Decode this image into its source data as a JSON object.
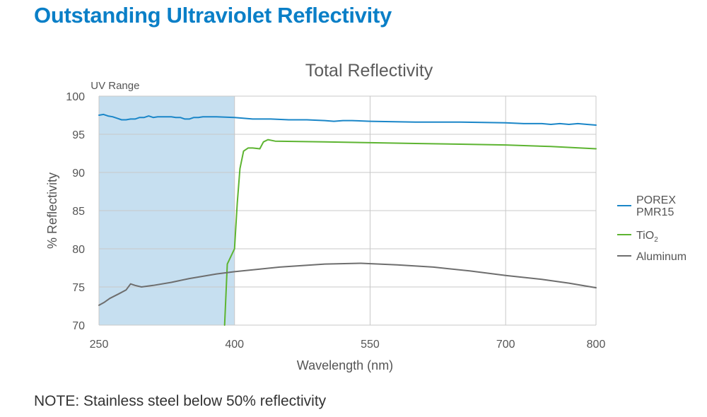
{
  "page": {
    "heading": "Outstanding Ultraviolet Reflectivity",
    "note": "NOTE: Stainless steel below 50% reflectivity"
  },
  "colors": {
    "heading": "#0a7fc7",
    "porex": "#1a86c8",
    "tio2": "#5db431",
    "aluminum": "#6e6e6e",
    "uv_band": "#c6dff0",
    "grid": "#c8c8c8"
  },
  "chart_data": {
    "type": "line",
    "title": "Total Reflectivity",
    "xlabel": "Wavelength (nm)",
    "ylabel": "% Reflectivity",
    "xlim": [
      250,
      800
    ],
    "ylim": [
      70,
      100
    ],
    "xticks": [
      250,
      400,
      550,
      700,
      800
    ],
    "yticks": [
      70,
      75,
      80,
      85,
      90,
      95,
      100
    ],
    "grid": true,
    "legend_position": "right",
    "annotations": [
      {
        "text": "UV Range",
        "x_start": 250,
        "x_end": 400
      }
    ],
    "series": [
      {
        "name": "POREX PMR15",
        "legend_lines": [
          "POREX",
          "PMR15"
        ],
        "color": "#1a86c8",
        "points": [
          [
            250,
            97.5
          ],
          [
            255,
            97.6
          ],
          [
            260,
            97.4
          ],
          [
            265,
            97.3
          ],
          [
            270,
            97.1
          ],
          [
            275,
            96.9
          ],
          [
            280,
            96.9
          ],
          [
            285,
            97.0
          ],
          [
            290,
            97.0
          ],
          [
            295,
            97.2
          ],
          [
            300,
            97.2
          ],
          [
            305,
            97.4
          ],
          [
            310,
            97.2
          ],
          [
            315,
            97.3
          ],
          [
            320,
            97.3
          ],
          [
            325,
            97.3
          ],
          [
            330,
            97.3
          ],
          [
            335,
            97.2
          ],
          [
            340,
            97.2
          ],
          [
            345,
            97.0
          ],
          [
            350,
            97.0
          ],
          [
            355,
            97.2
          ],
          [
            360,
            97.2
          ],
          [
            365,
            97.3
          ],
          [
            370,
            97.3
          ],
          [
            380,
            97.3
          ],
          [
            400,
            97.2
          ],
          [
            420,
            97.0
          ],
          [
            440,
            97.0
          ],
          [
            460,
            96.9
          ],
          [
            480,
            96.9
          ],
          [
            500,
            96.8
          ],
          [
            510,
            96.7
          ],
          [
            520,
            96.8
          ],
          [
            530,
            96.8
          ],
          [
            550,
            96.7
          ],
          [
            600,
            96.6
          ],
          [
            650,
            96.6
          ],
          [
            700,
            96.5
          ],
          [
            720,
            96.4
          ],
          [
            740,
            96.4
          ],
          [
            750,
            96.3
          ],
          [
            760,
            96.4
          ],
          [
            770,
            96.3
          ],
          [
            780,
            96.4
          ],
          [
            790,
            96.3
          ],
          [
            800,
            96.2
          ]
        ]
      },
      {
        "name": "TiO",
        "name_subscript": "2",
        "color": "#5db431",
        "points": [
          [
            389,
            70.0
          ],
          [
            392,
            78.0
          ],
          [
            400,
            80.0
          ],
          [
            403,
            86.0
          ],
          [
            406,
            90.5
          ],
          [
            410,
            92.8
          ],
          [
            415,
            93.2
          ],
          [
            420,
            93.2
          ],
          [
            428,
            93.1
          ],
          [
            432,
            94.0
          ],
          [
            437,
            94.3
          ],
          [
            445,
            94.1
          ],
          [
            500,
            94.0
          ],
          [
            550,
            93.9
          ],
          [
            600,
            93.8
          ],
          [
            650,
            93.7
          ],
          [
            700,
            93.6
          ],
          [
            750,
            93.4
          ],
          [
            800,
            93.1
          ]
        ]
      },
      {
        "name": "Aluminum",
        "color": "#6e6e6e",
        "points": [
          [
            250,
            72.6
          ],
          [
            256,
            73.0
          ],
          [
            262,
            73.5
          ],
          [
            272,
            74.1
          ],
          [
            280,
            74.6
          ],
          [
            285,
            75.4
          ],
          [
            290,
            75.2
          ],
          [
            297,
            75.0
          ],
          [
            310,
            75.2
          ],
          [
            330,
            75.6
          ],
          [
            350,
            76.1
          ],
          [
            380,
            76.7
          ],
          [
            400,
            77.0
          ],
          [
            450,
            77.6
          ],
          [
            500,
            78.0
          ],
          [
            540,
            78.1
          ],
          [
            580,
            77.9
          ],
          [
            620,
            77.6
          ],
          [
            660,
            77.1
          ],
          [
            700,
            76.5
          ],
          [
            740,
            76.0
          ],
          [
            770,
            75.5
          ],
          [
            800,
            74.9
          ]
        ]
      }
    ]
  }
}
